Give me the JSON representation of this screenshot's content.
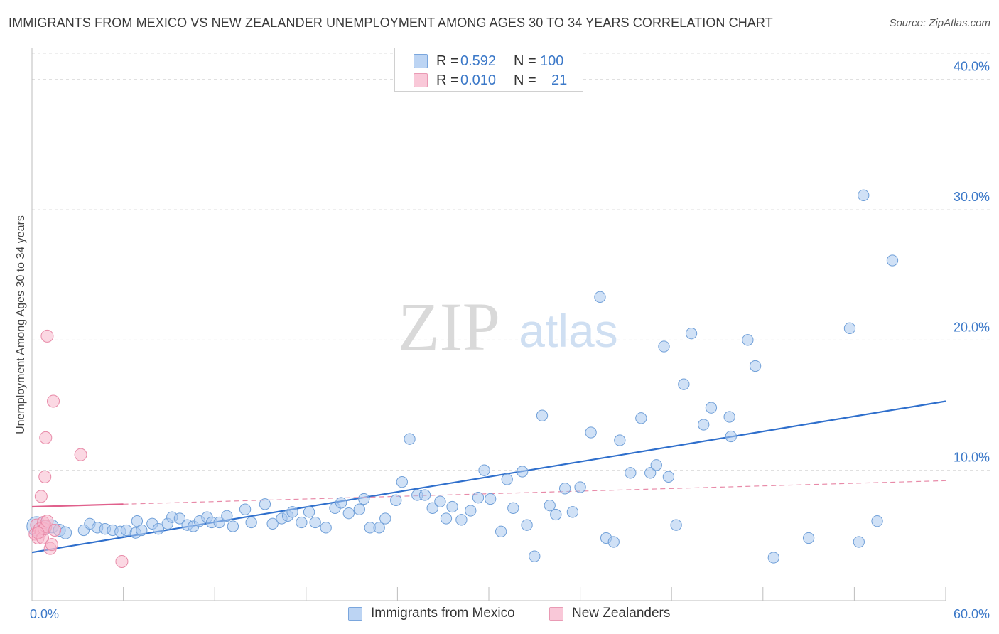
{
  "header": {
    "title": "IMMIGRANTS FROM MEXICO VS NEW ZEALANDER UNEMPLOYMENT AMONG AGES 30 TO 34 YEARS CORRELATION CHART",
    "source": "Source: ZipAtlas.com"
  },
  "watermark": {
    "zip": "ZIP",
    "atlas": "atlas"
  },
  "legend_stats": [
    {
      "r_label": "R =",
      "r_value": "0.592",
      "n_label": "N =",
      "n_value": "100"
    },
    {
      "r_label": "R =",
      "r_value": "0.010",
      "n_label": "N =",
      "n_value": "21"
    }
  ],
  "chart_data": {
    "type": "scatter",
    "title": "IMMIGRANTS FROM MEXICO VS NEW ZEALANDER UNEMPLOYMENT AMONG AGES 30 TO 34 YEARS CORRELATION CHART",
    "xlabel": "",
    "ylabel": "Unemployment Among Ages 30 to 34 years",
    "xlim": [
      0,
      60
    ],
    "ylim": [
      0,
      42
    ],
    "x_tick_labels": [
      "0.0%",
      "60.0%"
    ],
    "y_ticks": [
      10,
      20,
      30,
      40
    ],
    "y_tick_labels": [
      "10.0%",
      "20.0%",
      "30.0%",
      "40.0%"
    ],
    "grid": true,
    "legend_position": "bottom",
    "series": [
      {
        "name": "Immigrants from Mexico",
        "color": "#a9c8ef",
        "stroke": "#6f9fd8",
        "r": "0.592",
        "n": "100",
        "trend": {
          "x": [
            0,
            60
          ],
          "y": [
            3.7,
            15.3
          ],
          "color": "#2f6fcc"
        },
        "points": [
          [
            0.3,
            5.7,
            1.6
          ],
          [
            0.8,
            5.6,
            1.2
          ],
          [
            1.3,
            5.7,
            1.1
          ],
          [
            1.8,
            5.4,
            1.0
          ],
          [
            2.2,
            5.2,
            1.0
          ],
          [
            3.4,
            5.4,
            0.9
          ],
          [
            3.8,
            5.9,
            0.9
          ],
          [
            4.3,
            5.6,
            0.9
          ],
          [
            4.8,
            5.5,
            0.9
          ],
          [
            5.3,
            5.4,
            0.9
          ],
          [
            5.8,
            5.3,
            0.9
          ],
          [
            6.2,
            5.4,
            0.9
          ],
          [
            6.8,
            5.2,
            0.9
          ],
          [
            6.9,
            6.1,
            0.9
          ],
          [
            7.2,
            5.4,
            0.9
          ],
          [
            7.9,
            5.9,
            0.9
          ],
          [
            8.3,
            5.5,
            0.9
          ],
          [
            8.9,
            5.9,
            0.9
          ],
          [
            9.2,
            6.4,
            0.9
          ],
          [
            9.7,
            6.3,
            0.9
          ],
          [
            10.2,
            5.8,
            0.9
          ],
          [
            10.6,
            5.7,
            0.9
          ],
          [
            11.0,
            6.1,
            0.9
          ],
          [
            11.5,
            6.4,
            0.9
          ],
          [
            11.8,
            6.0,
            0.9
          ],
          [
            12.3,
            6.0,
            0.9
          ],
          [
            12.8,
            6.5,
            0.9
          ],
          [
            13.2,
            5.7,
            0.9
          ],
          [
            14.0,
            7.0,
            0.9
          ],
          [
            14.4,
            6.0,
            0.9
          ],
          [
            15.3,
            7.4,
            0.9
          ],
          [
            15.8,
            5.9,
            0.9
          ],
          [
            16.4,
            6.3,
            0.9
          ],
          [
            16.8,
            6.5,
            0.9
          ],
          [
            17.1,
            6.8,
            0.9
          ],
          [
            17.7,
            6.0,
            0.9
          ],
          [
            18.2,
            6.8,
            0.9
          ],
          [
            18.6,
            6.0,
            0.9
          ],
          [
            19.3,
            5.6,
            0.9
          ],
          [
            19.9,
            7.1,
            0.9
          ],
          [
            20.3,
            7.5,
            0.9
          ],
          [
            20.8,
            6.7,
            0.9
          ],
          [
            21.5,
            7.0,
            0.9
          ],
          [
            21.8,
            7.8,
            0.9
          ],
          [
            22.2,
            5.6,
            0.9
          ],
          [
            22.8,
            5.6,
            0.9
          ],
          [
            23.2,
            6.3,
            0.9
          ],
          [
            23.9,
            7.7,
            0.9
          ],
          [
            24.3,
            9.1,
            0.9
          ],
          [
            24.8,
            12.4,
            0.9
          ],
          [
            25.3,
            8.1,
            0.9
          ],
          [
            25.8,
            8.1,
            0.9
          ],
          [
            26.3,
            7.1,
            0.9
          ],
          [
            26.8,
            7.6,
            0.9
          ],
          [
            27.2,
            6.3,
            0.9
          ],
          [
            27.6,
            7.2,
            0.9
          ],
          [
            28.2,
            6.2,
            0.9
          ],
          [
            28.8,
            6.9,
            0.9
          ],
          [
            29.3,
            7.9,
            0.9
          ],
          [
            29.7,
            10.0,
            0.9
          ],
          [
            30.1,
            7.8,
            0.9
          ],
          [
            30.8,
            5.3,
            0.9
          ],
          [
            31.2,
            9.3,
            0.9
          ],
          [
            31.6,
            7.1,
            0.9
          ],
          [
            32.2,
            9.9,
            0.9
          ],
          [
            32.5,
            5.8,
            0.9
          ],
          [
            33.0,
            3.4,
            0.9
          ],
          [
            33.5,
            14.2,
            0.9
          ],
          [
            34.0,
            7.3,
            0.9
          ],
          [
            34.4,
            6.6,
            0.9
          ],
          [
            35.0,
            8.6,
            0.9
          ],
          [
            35.5,
            6.8,
            0.9
          ],
          [
            36.0,
            8.7,
            0.9
          ],
          [
            36.7,
            12.9,
            0.9
          ],
          [
            37.3,
            23.3,
            0.9
          ],
          [
            37.7,
            4.8,
            0.9
          ],
          [
            38.2,
            4.5,
            0.9
          ],
          [
            38.6,
            12.3,
            0.9
          ],
          [
            39.3,
            9.8,
            0.9
          ],
          [
            40.0,
            14.0,
            0.9
          ],
          [
            40.6,
            9.8,
            0.9
          ],
          [
            41.0,
            10.4,
            0.9
          ],
          [
            41.5,
            19.5,
            0.9
          ],
          [
            41.8,
            9.5,
            0.9
          ],
          [
            42.3,
            5.8,
            0.9
          ],
          [
            42.8,
            16.6,
            0.9
          ],
          [
            43.3,
            20.5,
            0.9
          ],
          [
            44.1,
            13.5,
            0.9
          ],
          [
            44.6,
            14.8,
            0.9
          ],
          [
            45.8,
            14.1,
            0.9
          ],
          [
            45.9,
            12.6,
            0.9
          ],
          [
            47.0,
            20.0,
            0.9
          ],
          [
            47.5,
            18.0,
            0.9
          ],
          [
            48.7,
            3.3,
            0.9
          ],
          [
            51.0,
            4.8,
            0.9
          ],
          [
            53.7,
            20.9,
            0.9
          ],
          [
            54.3,
            4.5,
            0.9
          ],
          [
            54.6,
            31.1,
            0.9
          ],
          [
            55.5,
            6.1,
            0.9
          ],
          [
            56.5,
            26.1,
            0.9
          ]
        ]
      },
      {
        "name": "New Zealanders",
        "color": "#f7b8cc",
        "stroke": "#e88aa8",
        "r": "0.010",
        "n": "21",
        "trend": {
          "x": [
            0,
            6
          ],
          "y": [
            7.2,
            7.4
          ],
          "color": "#e0608c"
        },
        "trend_extension": {
          "x": [
            6,
            60
          ],
          "y": [
            7.4,
            9.2
          ],
          "color": "#e88aa8"
        },
        "points": [
          [
            0.2,
            5.1,
            1.0
          ],
          [
            0.3,
            5.8,
            1.0
          ],
          [
            0.4,
            4.8,
            1.0
          ],
          [
            0.5,
            5.5,
            1.0
          ],
          [
            0.6,
            5.3,
            1.0
          ],
          [
            0.7,
            4.8,
            1.0
          ],
          [
            0.75,
            6.0,
            1.0
          ],
          [
            0.8,
            5.5,
            1.0
          ],
          [
            0.9,
            5.7,
            1.0
          ],
          [
            1.0,
            6.1,
            1.0
          ],
          [
            0.6,
            8.0,
            1.0
          ],
          [
            0.85,
            9.5,
            1.0
          ],
          [
            0.9,
            12.5,
            1.0
          ],
          [
            1.0,
            20.3,
            1.0
          ],
          [
            1.2,
            4.0,
            1.0
          ],
          [
            1.3,
            4.3,
            1.0
          ],
          [
            1.4,
            15.3,
            1.0
          ],
          [
            1.5,
            5.4,
            1.0
          ],
          [
            3.2,
            11.2,
            1.0
          ],
          [
            5.9,
            3.0,
            1.0
          ],
          [
            0.4,
            5.2,
            1.0
          ]
        ]
      }
    ]
  }
}
